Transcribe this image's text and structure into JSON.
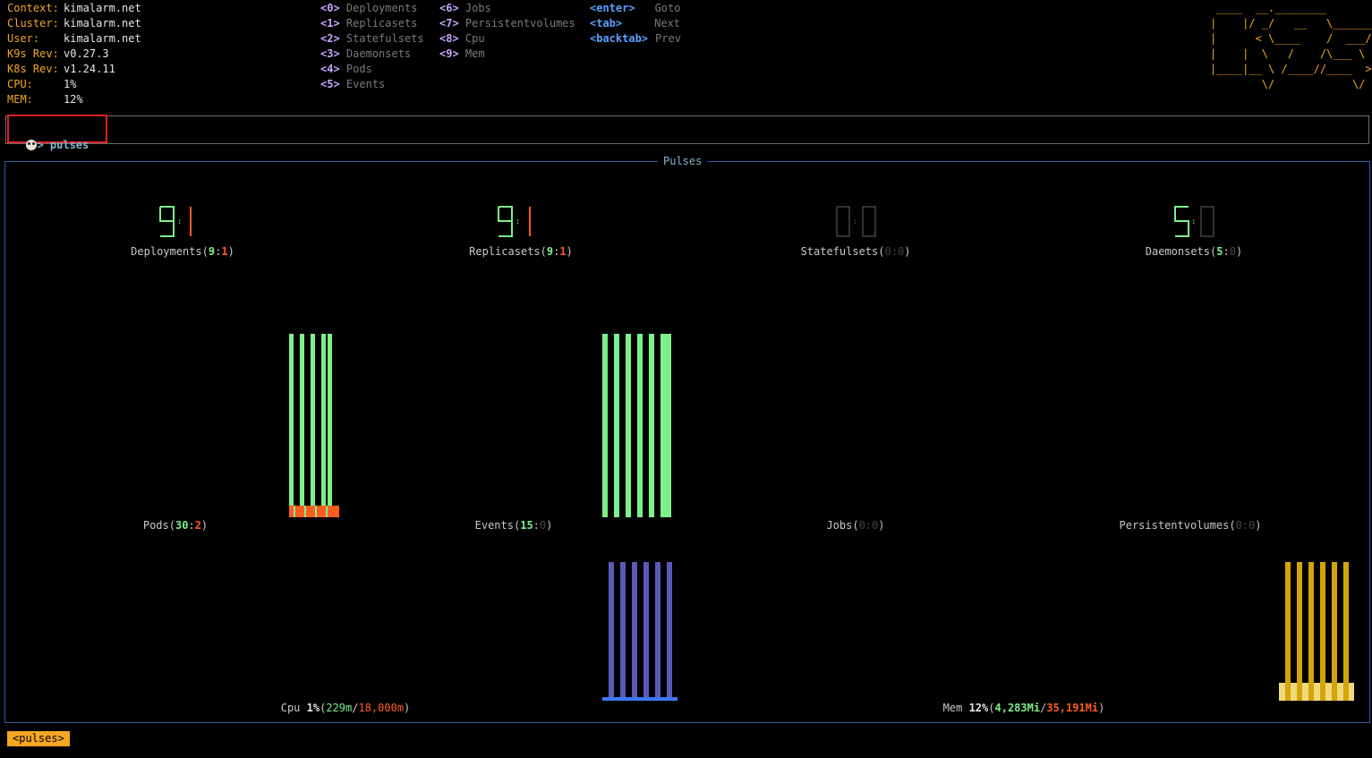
{
  "header": {
    "info": [
      {
        "key": "Context:",
        "value": "kimalarm.net"
      },
      {
        "key": "Cluster:",
        "value": "kimalarm.net"
      },
      {
        "key": "User:",
        "value": "kimalarm.net"
      },
      {
        "key": "K9s Rev:",
        "value": "v0.27.3"
      },
      {
        "key": "K8s Rev:",
        "value": "v1.24.11"
      },
      {
        "key": "CPU:",
        "value": "1%"
      },
      {
        "key": "MEM:",
        "value": "12%"
      }
    ],
    "shortcuts_col1": [
      {
        "key": "<0>",
        "label": "Deployments"
      },
      {
        "key": "<1>",
        "label": "Replicasets"
      },
      {
        "key": "<2>",
        "label": "Statefulsets"
      },
      {
        "key": "<3>",
        "label": "Daemonsets"
      },
      {
        "key": "<4>",
        "label": "Pods"
      },
      {
        "key": "<5>",
        "label": "Events"
      }
    ],
    "shortcuts_col2": [
      {
        "key": "<6>",
        "label": "Jobs"
      },
      {
        "key": "<7>",
        "label": "Persistentvolumes"
      },
      {
        "key": "<8>",
        "label": "Cpu"
      },
      {
        "key": "<9>",
        "label": "Mem"
      }
    ],
    "nav_keys": [
      {
        "key": "<enter>",
        "label": "Goto"
      },
      {
        "key": "<tab>",
        "label": "Next"
      },
      {
        "key": "<backtab>",
        "label": "Prev"
      }
    ],
    "logo_lines": [
      " ____  __.________       ",
      "|    |/ _/   __   \\______",
      "|      < \\____    /  ___/",
      "|    |  \\   /    /\\___ \\ ",
      "|____|__ \\ /____//____  >",
      "        \\/            \\/ "
    ]
  },
  "command": {
    "prompt": "> ",
    "text": "pulses"
  },
  "panel": {
    "title": "Pulses"
  },
  "gauges": [
    {
      "name": "Deployments",
      "ok": "9",
      "fault": "1"
    },
    {
      "name": "Replicasets",
      "ok": "9",
      "fault": "1"
    },
    {
      "name": "Statefulsets",
      "ok": "0",
      "fault": "0"
    },
    {
      "name": "Daemonsets",
      "ok": "5",
      "fault": "0"
    }
  ],
  "sparks": [
    {
      "name": "Pods",
      "ok": "30",
      "fault": "2"
    },
    {
      "name": "Events",
      "ok": "15",
      "fault": "0"
    },
    {
      "name": "Jobs",
      "ok": "0",
      "fault": "0"
    },
    {
      "name": "Persistentvolumes",
      "ok": "0",
      "fault": "0"
    }
  ],
  "cpu": {
    "name": "Cpu",
    "pct": "1%",
    "used": "229m",
    "total": "18,000m"
  },
  "mem": {
    "name": "Mem",
    "pct": "12%",
    "used": "4,283Mi",
    "total": "35,191Mi"
  },
  "breadcrumb": "<pulses>",
  "colors": {
    "accent": "#f5a623",
    "ok": "#7ef08a",
    "fault": "#ff5b1f",
    "cpu": "#5a5ab8",
    "mem": "#d4a50a",
    "border": "#2e5fa8"
  }
}
